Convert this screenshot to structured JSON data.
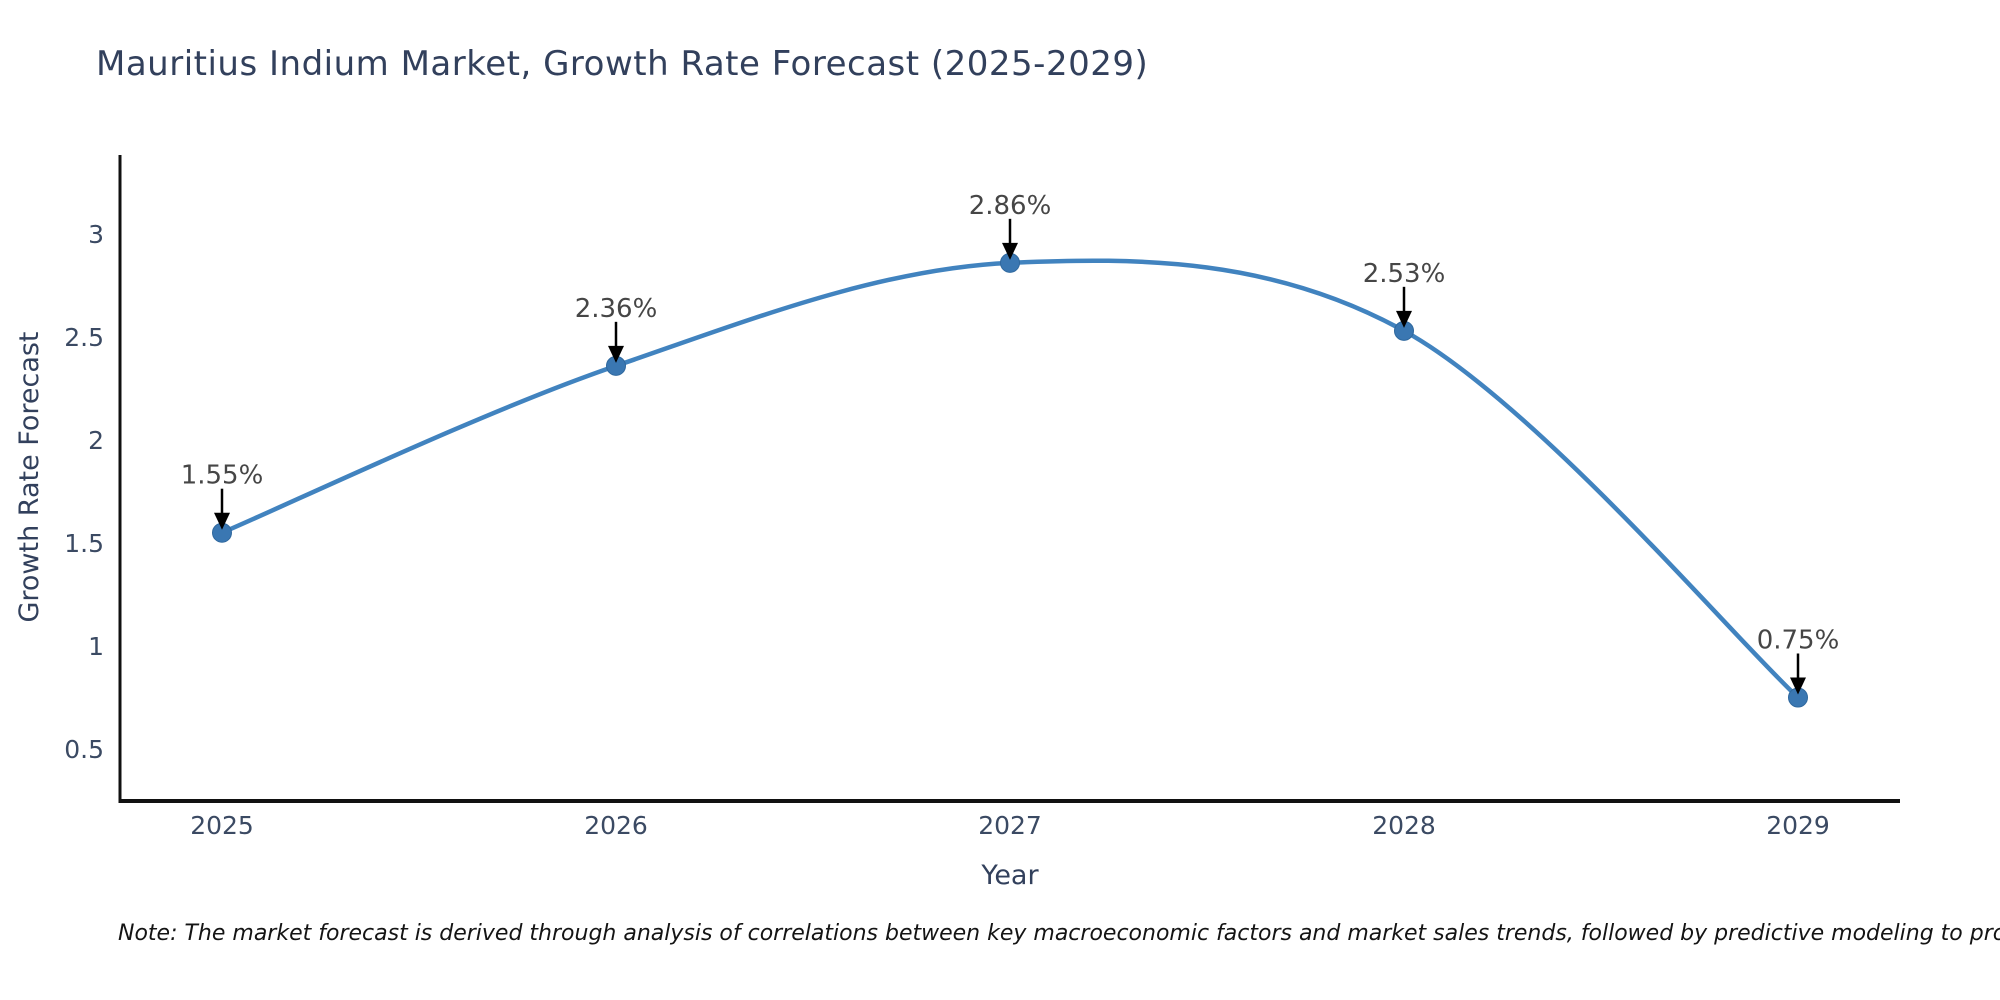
{
  "title": "Mauritius Indium Market, Growth Rate Forecast (2025-2029)",
  "note": "Note: The market forecast is derived through analysis of correlations between key macroeconomic factors and market sales trends, followed by predictive modeling to project future sales",
  "colors": {
    "line": "#4183bf",
    "marker_fill": "#3a77b2",
    "marker_edge": "#2f689e",
    "arrow": "#000000",
    "axis_spine": "#111111",
    "title_text": "#32405c",
    "tick_text": "#3b4a63",
    "annotation_text": "#464646",
    "note_text": "#141414",
    "background": "#ffffff"
  },
  "chart_data": {
    "type": "line",
    "title": "Mauritius Indium Market, Growth Rate Forecast (2025-2029)",
    "xlabel": "Year",
    "ylabel": "Growth Rate Forecast",
    "categories": [
      "2025",
      "2026",
      "2027",
      "2028",
      "2029"
    ],
    "series": [
      {
        "name": "Growth Rate Forecast",
        "values": [
          1.55,
          2.36,
          2.86,
          2.53,
          0.75
        ],
        "point_labels": [
          "1.55%",
          "2.36%",
          "2.86%",
          "2.53%",
          "0.75%"
        ]
      }
    ],
    "yticks": [
      0.5,
      1,
      1.5,
      2,
      2.5,
      3
    ],
    "ylim": [
      0.25,
      3.38
    ],
    "line_shape": "spline",
    "markers": true,
    "grid": false,
    "legend": "none",
    "annotation_style": "black-down-arrow"
  }
}
